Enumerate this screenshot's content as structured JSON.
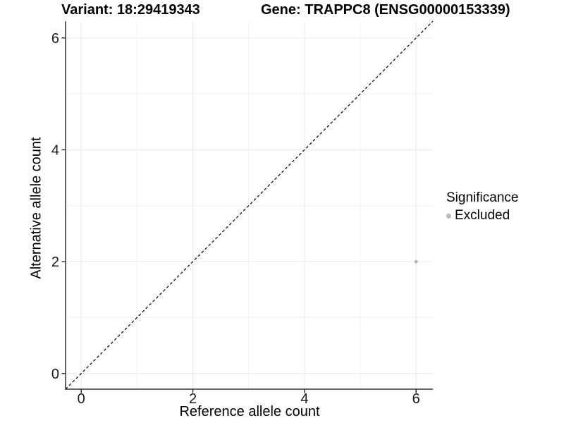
{
  "header": {
    "variant_title": "Variant: 18:29419343",
    "gene_title": "Gene: TRAPPC8 (ENSG00000153339)"
  },
  "chart_data": {
    "type": "scatter",
    "xlabel": "Reference allele count",
    "ylabel": "Alternative allele count",
    "xlim": [
      -0.28,
      6.3
    ],
    "ylim": [
      -0.28,
      6.3
    ],
    "x_ticks": [
      0,
      2,
      4,
      6
    ],
    "y_ticks": [
      0,
      2,
      4,
      6
    ],
    "minor_grid_x": [
      1,
      3,
      5
    ],
    "minor_grid_y": [
      1,
      3,
      5
    ],
    "grid": "on",
    "points": [
      {
        "x": 6,
        "y": 2,
        "series": "Excluded"
      }
    ],
    "reference_line": {
      "kind": "identity y=x",
      "style": "dashed",
      "color": "#000000"
    },
    "legend": {
      "title": "Significance",
      "position": "right",
      "items": [
        {
          "label": "Excluded",
          "color": "#b9b9b9"
        }
      ]
    },
    "colors": {
      "point": "#b9b9b9",
      "major_grid": "#e9e9e9",
      "minor_grid": "#f1f1f1",
      "axis": "#333333",
      "tick_text": "#1a1a1a"
    }
  }
}
